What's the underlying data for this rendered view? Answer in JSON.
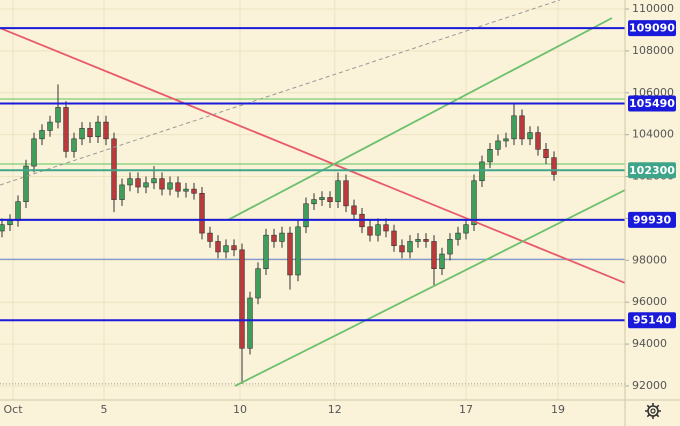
{
  "chart_data": {
    "type": "candlestick",
    "background": "#faf3d9",
    "up_color": "#3f9f5a",
    "down_color": "#b83a3a",
    "wick_color": "#333333",
    "open": [
      99400,
      99700,
      99900,
      100800,
      102500,
      103800,
      104200,
      104600,
      105300,
      103200,
      103800,
      104300,
      103900,
      104600,
      103800,
      100900,
      101600,
      101900,
      101500,
      101700,
      101900,
      101400,
      101700,
      101300,
      101400,
      101200,
      99300,
      98900,
      98400,
      98700,
      98500,
      93800,
      96200,
      97600,
      99200,
      98900,
      99300,
      97300,
      99600,
      100700,
      100900,
      101000,
      100800,
      101800,
      100600,
      100200,
      99600,
      99200,
      99700,
      99400,
      98700,
      98400,
      98900,
      99000,
      98900,
      97600,
      98300,
      99000,
      99300,
      99700,
      101800,
      102700,
      103300,
      103700,
      103800,
      104900,
      103800,
      104100,
      103300,
      102900
    ],
    "high": [
      100000,
      100200,
      101100,
      102800,
      104100,
      104500,
      104900,
      106400,
      105600,
      104100,
      104600,
      104600,
      104900,
      104900,
      104100,
      101900,
      102200,
      102200,
      102000,
      102500,
      102200,
      102000,
      102000,
      101700,
      101700,
      101500,
      99600,
      99200,
      99000,
      99000,
      98800,
      96500,
      97900,
      99500,
      99500,
      99600,
      99600,
      99900,
      101000,
      101200,
      101300,
      101300,
      102200,
      102100,
      100900,
      100500,
      99900,
      100000,
      100000,
      99700,
      99000,
      99200,
      99300,
      99300,
      99200,
      98600,
      99300,
      99600,
      100000,
      102100,
      103000,
      103600,
      104000,
      104100,
      105500,
      105200,
      104400,
      104400,
      103600,
      103200
    ],
    "low": [
      99100,
      99400,
      99600,
      100500,
      102200,
      103500,
      103900,
      104300,
      102900,
      102900,
      103500,
      103600,
      103600,
      103500,
      100300,
      100600,
      101300,
      101200,
      101200,
      101400,
      101100,
      101100,
      101000,
      101000,
      100900,
      99000,
      98600,
      98100,
      98100,
      98200,
      92100,
      93500,
      95900,
      97300,
      98600,
      98600,
      96600,
      97000,
      99300,
      100400,
      100600,
      100500,
      100500,
      100300,
      99900,
      99300,
      98900,
      98900,
      99100,
      98400,
      98100,
      98100,
      98600,
      98600,
      96800,
      97300,
      98000,
      98700,
      99000,
      99400,
      101500,
      102400,
      103000,
      103400,
      103500,
      103500,
      103500,
      103000,
      102600,
      101800
    ],
    "close": [
      99700,
      99900,
      100800,
      102500,
      103800,
      104200,
      104600,
      105300,
      103200,
      103800,
      104300,
      103900,
      104600,
      103800,
      100900,
      101600,
      101900,
      101500,
      101700,
      101900,
      101400,
      101700,
      101300,
      101400,
      101200,
      99300,
      98900,
      98400,
      98700,
      98500,
      93800,
      96200,
      97600,
      99200,
      98900,
      99300,
      97300,
      99600,
      100700,
      100900,
      101000,
      100800,
      101800,
      100600,
      100200,
      99600,
      99200,
      99700,
      99400,
      98700,
      98400,
      98900,
      99000,
      98900,
      97600,
      98300,
      99000,
      99300,
      99700,
      101800,
      102700,
      103300,
      103700,
      103800,
      104900,
      103800,
      104100,
      103300,
      102900,
      102100
    ],
    "xlim": [
      -0.25,
      77.875
    ],
    "ylim": [
      91330,
      110430
    ],
    "xticks": [
      {
        "value": 1.375,
        "label": "Oct"
      },
      {
        "value": 12.75,
        "label": "5"
      },
      {
        "value": 29.75,
        "label": "10"
      },
      {
        "value": 41.6,
        "label": "12"
      },
      {
        "value": 58,
        "label": "17"
      },
      {
        "value": 69.5,
        "label": "19"
      }
    ],
    "yticks": [
      92000,
      94000,
      96000,
      98000,
      100000,
      102000,
      104000,
      106000,
      108000,
      110000
    ],
    "grid": true,
    "levels": [
      {
        "value": 109090,
        "color": "#1a1adb"
      },
      {
        "value": 105490,
        "color": "#1a1adb"
      },
      {
        "value": 102300,
        "color": "#3fa58a"
      },
      {
        "value": 99930,
        "color": "#1a1adb"
      },
      {
        "value": 95140,
        "color": "#1a1adb"
      }
    ],
    "extra_lines": [
      {
        "value": 105700,
        "color": "#5cc45c",
        "style": "solid"
      },
      {
        "value": 102600,
        "color": "#5cc45c",
        "style": "solid"
      },
      {
        "value": 102300,
        "color": "#999999",
        "style": "dotted"
      },
      {
        "value": 98050,
        "color": "#5a7fd0",
        "style": "solid"
      },
      {
        "value": 92100,
        "color": "#999999",
        "style": "dotted"
      }
    ],
    "trend_lines": [
      {
        "x": [
          -0.25,
          77.875
        ],
        "y": [
          109090,
          96918
        ],
        "color": "#e85a6a",
        "style": "solid"
      },
      {
        "x": [
          28.25,
          76.25
        ],
        "y": [
          99930,
          109570
        ],
        "color": "#6cc06c",
        "style": "solid"
      },
      {
        "x": [
          29.125,
          77.875
        ],
        "y": [
          92000,
          101357
        ],
        "color": "#6cc06c",
        "style": "solid"
      },
      {
        "x": [
          -0.25,
          69.75
        ],
        "y": [
          101597,
          110430
        ],
        "color": "#999999",
        "style": "dashed"
      }
    ]
  }
}
